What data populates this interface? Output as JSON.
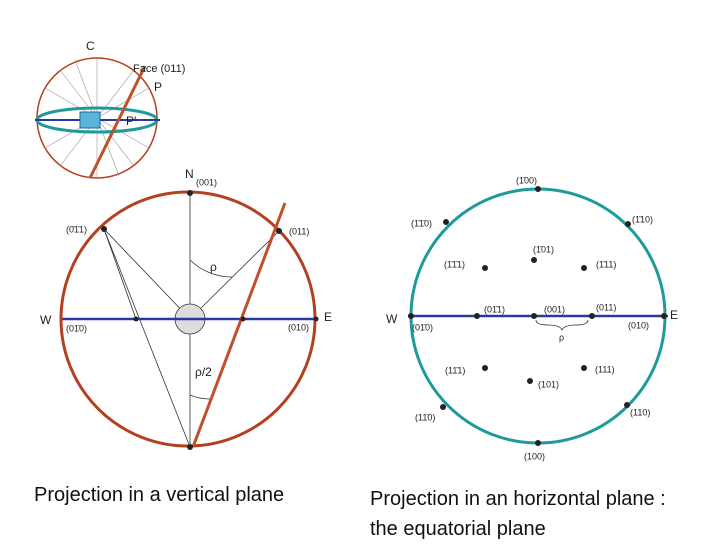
{
  "small_sphere": {
    "c": "C",
    "face": "Face (011)",
    "p": "P",
    "p_prime": "P'"
  },
  "vertical_projection": {
    "n": "N",
    "n_face": "(001)",
    "left_face": "(0̄1̄1)",
    "right_face": "(011)",
    "rho": "ρ",
    "w": "W",
    "w_face": "(01̄0)",
    "e": "E",
    "e_face": "(010)",
    "half_rho": "ρ/2",
    "caption": "Projection in a vertical plane"
  },
  "horizontal_projection": {
    "top": "(1̄00)",
    "f1": "(1̄1̄0)",
    "f2": "(1̄10)",
    "f3": "(1̄01)",
    "f4": "(1̄1̄1)",
    "f5": "(1̄11)",
    "w": "W",
    "f6": "(01̄1)",
    "f7": "(001)",
    "f8": "(011)",
    "e": "E",
    "w_face": "(01̄0)",
    "e_face": "(010)",
    "rho": "ρ",
    "f9": "(11̄1)",
    "f10": "(111)",
    "f11": "(101)",
    "f12": "(11̄0)",
    "f13": "(110)",
    "bottom": "(100)",
    "caption": "Projection in an horizontal plane : the equatorial plane"
  }
}
